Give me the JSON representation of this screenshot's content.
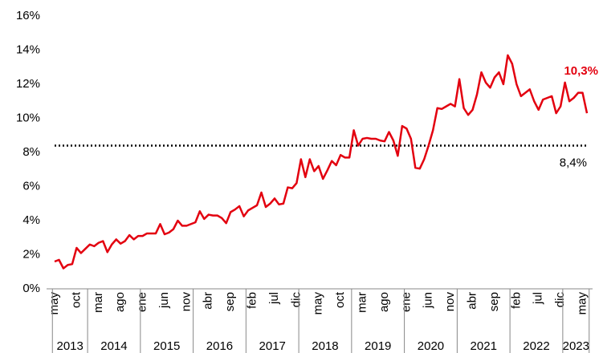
{
  "chart_data": {
    "type": "line",
    "x": [
      "2013-05",
      "2013-06",
      "2013-07",
      "2013-08",
      "2013-09",
      "2013-10",
      "2013-11",
      "2013-12",
      "2014-01",
      "2014-02",
      "2014-03",
      "2014-04",
      "2014-05",
      "2014-06",
      "2014-07",
      "2014-08",
      "2014-09",
      "2014-10",
      "2014-11",
      "2014-12",
      "2015-01",
      "2015-02",
      "2015-03",
      "2015-04",
      "2015-05",
      "2015-06",
      "2015-07",
      "2015-08",
      "2015-09",
      "2015-10",
      "2015-11",
      "2015-12",
      "2016-01",
      "2016-02",
      "2016-03",
      "2016-04",
      "2016-05",
      "2016-06",
      "2016-07",
      "2016-08",
      "2016-09",
      "2016-10",
      "2016-11",
      "2016-12",
      "2017-01",
      "2017-02",
      "2017-03",
      "2017-04",
      "2017-05",
      "2017-06",
      "2017-07",
      "2017-08",
      "2017-09",
      "2017-10",
      "2017-11",
      "2017-12",
      "2018-01",
      "2018-02",
      "2018-03",
      "2018-04",
      "2018-05",
      "2018-06",
      "2018-07",
      "2018-08",
      "2018-09",
      "2018-10",
      "2018-11",
      "2018-12",
      "2019-01",
      "2019-02",
      "2019-03",
      "2019-04",
      "2019-05",
      "2019-06",
      "2019-07",
      "2019-08",
      "2019-09",
      "2019-10",
      "2019-11",
      "2019-12",
      "2020-01",
      "2020-02",
      "2020-03",
      "2020-04",
      "2020-05",
      "2020-06",
      "2020-07",
      "2020-08",
      "2020-09",
      "2020-10",
      "2020-11",
      "2020-12",
      "2021-01",
      "2021-02",
      "2021-03",
      "2021-04",
      "2021-05",
      "2021-06",
      "2021-07",
      "2021-08",
      "2021-09",
      "2021-10",
      "2021-11",
      "2021-12",
      "2022-01",
      "2022-02",
      "2022-03",
      "2022-04",
      "2022-05",
      "2022-06",
      "2022-07",
      "2022-08",
      "2022-09",
      "2022-10",
      "2022-11",
      "2022-12",
      "2023-01",
      "2023-02",
      "2023-03",
      "2023-04",
      "2023-05",
      "2023-06"
    ],
    "series": [
      {
        "color": "#e3000f",
        "values": [
          1.6,
          1.7,
          1.2,
          1.4,
          1.45,
          2.4,
          2.1,
          2.35,
          2.6,
          2.5,
          2.7,
          2.8,
          2.15,
          2.6,
          2.9,
          2.65,
          2.8,
          3.15,
          2.9,
          3.1,
          3.1,
          3.25,
          3.25,
          3.25,
          3.8,
          3.2,
          3.3,
          3.5,
          4.0,
          3.7,
          3.7,
          3.8,
          3.9,
          4.55,
          4.1,
          4.35,
          4.3,
          4.3,
          4.15,
          3.85,
          4.5,
          4.65,
          4.85,
          4.25,
          4.6,
          4.75,
          4.9,
          5.65,
          4.8,
          5.0,
          5.3,
          4.95,
          5.0,
          5.95,
          5.9,
          6.2,
          7.6,
          6.55,
          7.6,
          6.9,
          7.2,
          6.45,
          6.95,
          7.5,
          7.25,
          7.85,
          7.7,
          7.7,
          9.3,
          8.4,
          8.8,
          8.85,
          8.8,
          8.8,
          8.7,
          8.65,
          9.2,
          8.7,
          7.8,
          9.55,
          9.4,
          8.8,
          7.1,
          7.05,
          7.6,
          8.4,
          9.3,
          10.6,
          10.55,
          10.7,
          10.85,
          10.7,
          12.3,
          10.6,
          10.2,
          10.5,
          11.4,
          12.7,
          12.1,
          11.8,
          12.4,
          12.7,
          12.0,
          13.7,
          13.2,
          12.0,
          11.3,
          11.5,
          11.7,
          11.0,
          10.5,
          11.1,
          11.2,
          11.3,
          10.3,
          10.7,
          12.1,
          11.0,
          11.2,
          11.5,
          11.5,
          10.3
        ],
        "value_labels": [
          null,
          null,
          null,
          null,
          null,
          null,
          null,
          null,
          null,
          null,
          null,
          null,
          null,
          null,
          null,
          null,
          null,
          null,
          null,
          null,
          null,
          null,
          null,
          null,
          null,
          null,
          null,
          null,
          null,
          null,
          null,
          null,
          null,
          null,
          null,
          null,
          null,
          null,
          null,
          null,
          null,
          null,
          null,
          null,
          null,
          null,
          null,
          null,
          null,
          null,
          null,
          null,
          null,
          null,
          null,
          null,
          null,
          null,
          null,
          null,
          null,
          null,
          null,
          null,
          null,
          null,
          null,
          null,
          null,
          null,
          null,
          null,
          null,
          null,
          null,
          null,
          null,
          null,
          null,
          null,
          null,
          null,
          null,
          null,
          null,
          null,
          null,
          null,
          null,
          null,
          null,
          null,
          null,
          null,
          null,
          null,
          null,
          null,
          null,
          null,
          null,
          null,
          null,
          null,
          null,
          null,
          null,
          null,
          null,
          null,
          null,
          null,
          null,
          null,
          null,
          null,
          null,
          null,
          null,
          null,
          null,
          "10,3%"
        ]
      }
    ],
    "xticks": [
      {
        "value": "2013-05",
        "label": "may"
      },
      {
        "value": "2013-10",
        "label": "oct"
      },
      {
        "value": "2014-03",
        "label": "mar"
      },
      {
        "value": "2014-08",
        "label": "ago"
      },
      {
        "value": "2015-01",
        "label": "ene"
      },
      {
        "value": "2015-06",
        "label": "jun"
      },
      {
        "value": "2015-11",
        "label": "nov"
      },
      {
        "value": "2016-04",
        "label": "abr"
      },
      {
        "value": "2016-09",
        "label": "sep"
      },
      {
        "value": "2017-02",
        "label": "feb"
      },
      {
        "value": "2017-07",
        "label": "jul"
      },
      {
        "value": "2017-12",
        "label": "dic"
      },
      {
        "value": "2018-05",
        "label": "may"
      },
      {
        "value": "2018-10",
        "label": "oct"
      },
      {
        "value": "2019-03",
        "label": "mar"
      },
      {
        "value": "2019-08",
        "label": "ago"
      },
      {
        "value": "2020-01",
        "label": "ene"
      },
      {
        "value": "2020-06",
        "label": "jun"
      },
      {
        "value": "2020-11",
        "label": "nov"
      },
      {
        "value": "2021-04",
        "label": "abr"
      },
      {
        "value": "2021-09",
        "label": "sep"
      },
      {
        "value": "2022-02",
        "label": "feb"
      },
      {
        "value": "2022-07",
        "label": "jul"
      },
      {
        "value": "2022-12",
        "label": "dic"
      },
      {
        "value": "2023-05",
        "label": "may"
      }
    ],
    "years": [
      2013,
      2014,
      2015,
      2016,
      2017,
      2018,
      2019,
      2020,
      2021,
      2022,
      2023
    ],
    "reference_line": {
      "value": 8.4,
      "label": "8,4%",
      "color": "#000000"
    },
    "ylim": [
      0,
      16
    ],
    "yticks": [
      {
        "value": 0,
        "label": "0%"
      },
      {
        "value": 2,
        "label": "2%"
      },
      {
        "value": 4,
        "label": "4%"
      },
      {
        "value": 6,
        "label": "6%"
      },
      {
        "value": 8,
        "label": "8%"
      },
      {
        "value": 10,
        "label": "10%"
      },
      {
        "value": 12,
        "label": "12%"
      },
      {
        "value": 14,
        "label": "14%"
      },
      {
        "value": 16,
        "label": "16%"
      }
    ],
    "grid": false
  }
}
